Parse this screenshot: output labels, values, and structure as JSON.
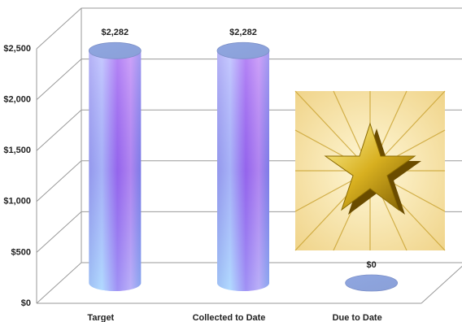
{
  "chart_data": {
    "type": "bar",
    "categories": [
      "Target",
      "Collected to Date",
      "Due to Date"
    ],
    "values": [
      2282,
      2282,
      0
    ],
    "value_labels": [
      "$2,282",
      "$2,282",
      "$0"
    ],
    "ylim": [
      0,
      2500
    ],
    "yticks": [
      {
        "value": 0,
        "label": "$0"
      },
      {
        "value": 500,
        "label": "$500"
      },
      {
        "value": 1000,
        "label": "$1,000"
      },
      {
        "value": 1500,
        "label": "$1,500"
      },
      {
        "value": 2000,
        "label": "$2,000"
      },
      {
        "value": 2500,
        "label": "$2,500"
      }
    ],
    "grid": true
  }
}
